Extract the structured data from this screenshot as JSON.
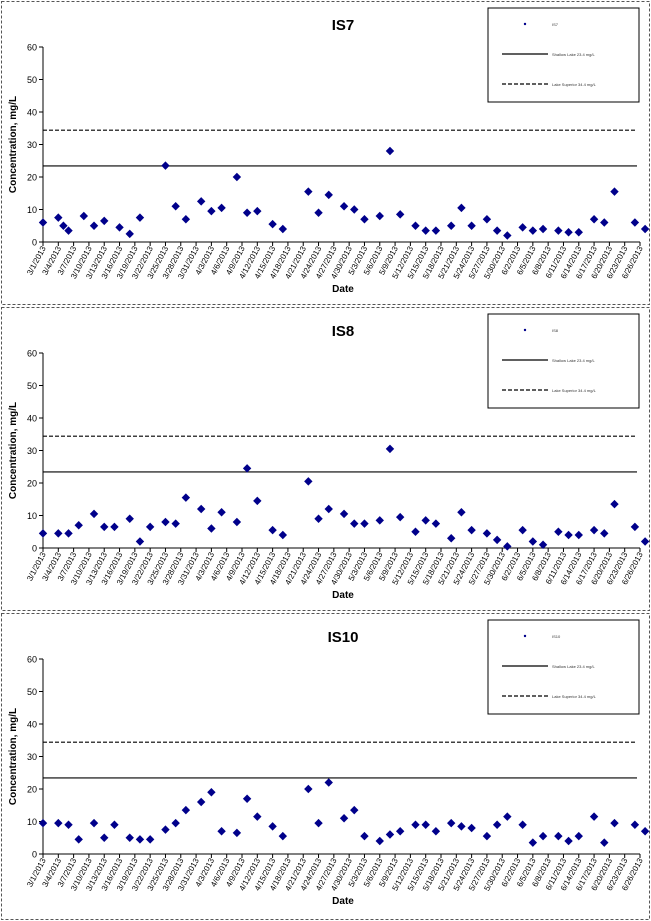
{
  "chart_data": [
    {
      "type": "scatter",
      "title": "IS7",
      "xlabel": "Date",
      "ylabel": "Concentration, mg/L",
      "ylim": [
        0,
        60
      ],
      "yticks": [
        0,
        10,
        20,
        30,
        40,
        50,
        60
      ],
      "xticks": [
        "3/1/2013",
        "3/4/2013",
        "3/7/2013",
        "3/10/2013",
        "3/13/2013",
        "3/16/2013",
        "3/19/2013",
        "3/22/2013",
        "3/25/2013",
        "3/28/2013",
        "3/31/2013",
        "4/3/2013",
        "4/6/2013",
        "4/9/2013",
        "4/12/2013",
        "4/15/2013",
        "4/18/2013",
        "4/21/2013",
        "4/24/2013",
        "4/27/2013",
        "4/30/2013",
        "5/3/2013",
        "5/6/2013",
        "5/9/2013",
        "5/12/2013",
        "5/15/2013",
        "5/18/2013",
        "5/21/2013",
        "5/24/2013",
        "5/27/2013",
        "5/30/2013",
        "6/2/2013",
        "6/5/2013",
        "6/8/2013",
        "6/11/2013",
        "6/14/2013",
        "6/17/2013",
        "6/20/2013",
        "6/23/2013",
        "6/26/2013"
      ],
      "grid": false,
      "legend_placement": "top-right",
      "legend": [
        {
          "label": "IS7",
          "style": "marker"
        },
        {
          "label": "Shallow Lake 23.4 mg/L",
          "style": "solid"
        },
        {
          "label": "Lake Superior 34.4 mg/L",
          "style": "dashed"
        }
      ],
      "reference_lines": [
        {
          "value": 23.4,
          "style": "solid"
        },
        {
          "value": 34.4,
          "style": "dashed"
        }
      ],
      "series": [
        {
          "x": [
            "3/1/2013",
            "3/4/2013",
            "3/5/2013",
            "3/6/2013",
            "3/9/2013",
            "3/11/2013",
            "3/13/2013",
            "3/16/2013",
            "3/18/2013",
            "3/20/2013",
            "3/25/2013",
            "3/27/2013",
            "3/29/2013",
            "4/1/2013",
            "4/3/2013",
            "4/5/2013",
            "4/8/2013",
            "4/10/2013",
            "4/12/2013",
            "4/15/2013",
            "4/17/2013",
            "4/22/2013",
            "4/24/2013",
            "4/26/2013",
            "4/29/2013",
            "5/1/2013",
            "5/3/2013",
            "5/6/2013",
            "5/8/2013",
            "5/10/2013",
            "5/13/2013",
            "5/15/2013",
            "5/17/2013",
            "5/20/2013",
            "5/22/2013",
            "5/24/2013",
            "5/27/2013",
            "5/29/2013",
            "5/31/2013",
            "6/3/2013",
            "6/5/2013",
            "6/7/2013",
            "6/10/2013",
            "6/12/2013",
            "6/14/2013",
            "6/17/2013",
            "6/19/2013",
            "6/21/2013",
            "6/25/2013",
            "6/27/2013"
          ],
          "y": [
            6,
            7.5,
            5,
            3.5,
            8,
            5,
            6.5,
            4.5,
            2.5,
            7.5,
            23.5,
            11,
            7,
            12.5,
            9.5,
            10.5,
            20,
            9,
            9.5,
            5.5,
            4,
            15.5,
            9,
            14.5,
            11,
            10,
            7,
            8,
            28,
            8.5,
            5,
            3.5,
            3.5,
            5,
            10.5,
            5,
            7,
            3.5,
            2,
            4.5,
            3.5,
            4,
            3.5,
            3,
            3,
            7,
            6,
            15.5,
            6,
            4
          ]
        }
      ]
    },
    {
      "type": "scatter",
      "title": "IS8",
      "xlabel": "Date",
      "ylabel": "Concentration, mg/L",
      "ylim": [
        0,
        60
      ],
      "yticks": [
        0,
        10,
        20,
        30,
        40,
        50,
        60
      ],
      "xticks": [
        "3/1/2013",
        "3/4/2013",
        "3/7/2013",
        "3/10/2013",
        "3/13/2013",
        "3/16/2013",
        "3/19/2013",
        "3/22/2013",
        "3/25/2013",
        "3/28/2013",
        "3/31/2013",
        "4/3/2013",
        "4/6/2013",
        "4/9/2013",
        "4/12/2013",
        "4/15/2013",
        "4/18/2013",
        "4/21/2013",
        "4/24/2013",
        "4/27/2013",
        "4/30/2013",
        "5/3/2013",
        "5/6/2013",
        "5/9/2013",
        "5/12/2013",
        "5/15/2013",
        "5/18/2013",
        "5/21/2013",
        "5/24/2013",
        "5/27/2013",
        "5/30/2013",
        "6/2/2013",
        "6/5/2013",
        "6/8/2013",
        "6/11/2013",
        "6/14/2013",
        "6/17/2013",
        "6/20/2013",
        "6/23/2013",
        "6/26/2013"
      ],
      "grid": false,
      "legend_placement": "top-right",
      "legend": [
        {
          "label": "IS8",
          "style": "marker"
        },
        {
          "label": "Shallow Lake 23.4 mg/L",
          "style": "solid"
        },
        {
          "label": "Lake Superior 34.4 mg/L",
          "style": "dashed"
        }
      ],
      "reference_lines": [
        {
          "value": 23.4,
          "style": "solid"
        },
        {
          "value": 34.4,
          "style": "dashed"
        }
      ],
      "series": [
        {
          "x": [
            "3/1/2013",
            "3/4/2013",
            "3/6/2013",
            "3/8/2013",
            "3/11/2013",
            "3/13/2013",
            "3/15/2013",
            "3/18/2013",
            "3/20/2013",
            "3/22/2013",
            "3/25/2013",
            "3/27/2013",
            "3/29/2013",
            "4/1/2013",
            "4/3/2013",
            "4/5/2013",
            "4/8/2013",
            "4/10/2013",
            "4/12/2013",
            "4/15/2013",
            "4/17/2013",
            "4/22/2013",
            "4/24/2013",
            "4/26/2013",
            "4/29/2013",
            "5/1/2013",
            "5/3/2013",
            "5/6/2013",
            "5/8/2013",
            "5/10/2013",
            "5/13/2013",
            "5/15/2013",
            "5/17/2013",
            "5/20/2013",
            "5/22/2013",
            "5/24/2013",
            "5/27/2013",
            "5/29/2013",
            "5/31/2013",
            "6/3/2013",
            "6/5/2013",
            "6/7/2013",
            "6/10/2013",
            "6/12/2013",
            "6/14/2013",
            "6/17/2013",
            "6/19/2013",
            "6/21/2013",
            "6/25/2013",
            "6/27/2013"
          ],
          "y": [
            4.5,
            4.5,
            4.5,
            7,
            10.5,
            6.5,
            6.5,
            9,
            2,
            6.5,
            8,
            7.5,
            15.5,
            12,
            6,
            11,
            8,
            24.5,
            14.5,
            5.5,
            4,
            20.5,
            9,
            12,
            10.5,
            7.5,
            7.5,
            8.5,
            30.5,
            9.5,
            5,
            8.5,
            7.5,
            3,
            11,
            5.5,
            4.5,
            2.5,
            0.5,
            5.5,
            2,
            1,
            5,
            4,
            4,
            5.5,
            4.5,
            13.5,
            6.5,
            2
          ]
        }
      ]
    },
    {
      "type": "scatter",
      "title": "IS10",
      "xlabel": "Date",
      "ylabel": "Concentration, mg/L",
      "ylim": [
        0,
        60
      ],
      "yticks": [
        0,
        10,
        20,
        30,
        40,
        50,
        60
      ],
      "xticks": [
        "3/1/2013",
        "3/4/2013",
        "3/7/2013",
        "3/10/2013",
        "3/13/2013",
        "3/16/2013",
        "3/19/2013",
        "3/22/2013",
        "3/25/2013",
        "3/28/2013",
        "3/31/2013",
        "4/3/2013",
        "4/6/2013",
        "4/9/2013",
        "4/12/2013",
        "4/15/2013",
        "4/18/2013",
        "4/21/2013",
        "4/24/2013",
        "4/27/2013",
        "4/30/2013",
        "5/3/2013",
        "5/6/2013",
        "5/9/2013",
        "5/12/2013",
        "5/15/2013",
        "5/18/2013",
        "5/21/2013",
        "5/24/2013",
        "5/27/2013",
        "5/30/2013",
        "6/2/2013",
        "6/5/2013",
        "6/8/2013",
        "6/11/2013",
        "6/14/2013",
        "6/17/2013",
        "6/20/2013",
        "6/23/2013",
        "6/26/2013"
      ],
      "grid": false,
      "legend_placement": "top-right",
      "legend": [
        {
          "label": "IS10",
          "style": "marker"
        },
        {
          "label": "Shallow Lake 23.4 mg/L",
          "style": "solid"
        },
        {
          "label": "Lake Superior 34.4 mg/L",
          "style": "dashed"
        }
      ],
      "reference_lines": [
        {
          "value": 23.4,
          "style": "solid"
        },
        {
          "value": 34.4,
          "style": "dashed"
        }
      ],
      "series": [
        {
          "x": [
            "3/1/2013",
            "3/4/2013",
            "3/6/2013",
            "3/8/2013",
            "3/11/2013",
            "3/13/2013",
            "3/15/2013",
            "3/18/2013",
            "3/20/2013",
            "3/22/2013",
            "3/25/2013",
            "3/27/2013",
            "3/29/2013",
            "4/1/2013",
            "4/3/2013",
            "4/5/2013",
            "4/8/2013",
            "4/10/2013",
            "4/12/2013",
            "4/15/2013",
            "4/17/2013",
            "4/22/2013",
            "4/24/2013",
            "4/26/2013",
            "4/29/2013",
            "5/1/2013",
            "5/3/2013",
            "5/6/2013",
            "5/8/2013",
            "5/10/2013",
            "5/13/2013",
            "5/15/2013",
            "5/17/2013",
            "5/20/2013",
            "5/22/2013",
            "5/24/2013",
            "5/27/2013",
            "5/29/2013",
            "5/31/2013",
            "6/3/2013",
            "6/5/2013",
            "6/7/2013",
            "6/10/2013",
            "6/12/2013",
            "6/14/2013",
            "6/17/2013",
            "6/19/2013",
            "6/21/2013",
            "6/25/2013",
            "6/27/2013"
          ],
          "y": [
            9.5,
            9.5,
            9,
            4.5,
            9.5,
            5,
            9,
            5,
            4.5,
            4.5,
            7.5,
            9.5,
            13.5,
            16,
            19,
            7,
            6.5,
            17,
            11.5,
            8.5,
            5.5,
            20,
            9.5,
            22,
            11,
            13.5,
            5.5,
            4,
            6,
            7,
            9,
            9,
            7,
            9.5,
            8.5,
            8,
            5.5,
            9,
            11.5,
            9,
            3.5,
            5.5,
            5.5,
            4,
            5.5,
            11.5,
            3.5,
            9.5,
            9,
            7
          ]
        }
      ]
    }
  ]
}
